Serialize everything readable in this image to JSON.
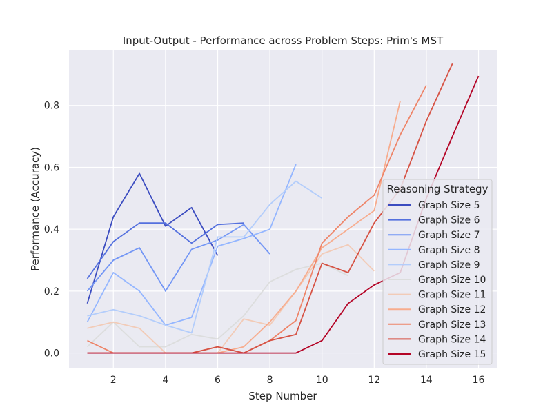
{
  "chart_data": {
    "type": "line",
    "title": "Input-Output - Performance across Problem Steps: Prim's MST",
    "xlabel": "Step Number",
    "ylabel": "Performance (Accuracy)",
    "xlim": [
      0.3,
      16.7
    ],
    "ylim": [
      -0.05,
      0.98
    ],
    "xticks": [
      2,
      4,
      6,
      8,
      10,
      12,
      14,
      16
    ],
    "yticks": [
      0.0,
      0.2,
      0.4,
      0.6,
      0.8
    ],
    "grid": true,
    "legend_title": "Reasoning Strategy",
    "legend_placement": "center-right",
    "series": [
      {
        "name": "Graph Size 5",
        "color": "#3b4cc0",
        "x": [
          1,
          2,
          3,
          4,
          5,
          6
        ],
        "y": [
          0.16,
          0.44,
          0.58,
          0.41,
          0.47,
          0.315
        ]
      },
      {
        "name": "Graph Size 6",
        "color": "#5470de",
        "x": [
          1,
          2,
          3,
          4,
          5,
          6,
          7
        ],
        "y": [
          0.24,
          0.36,
          0.42,
          0.42,
          0.355,
          0.415,
          0.42
        ]
      },
      {
        "name": "Graph Size 7",
        "color": "#7396f5",
        "x": [
          1,
          2,
          3,
          4,
          5,
          6,
          7,
          8
        ],
        "y": [
          0.2,
          0.3,
          0.34,
          0.2,
          0.335,
          0.365,
          0.415,
          0.32
        ]
      },
      {
        "name": "Graph Size 8",
        "color": "#94b6ff",
        "x": [
          1,
          2,
          3,
          4,
          5,
          6,
          7,
          8,
          9
        ],
        "y": [
          0.1,
          0.26,
          0.2,
          0.09,
          0.115,
          0.345,
          0.37,
          0.4,
          0.61
        ]
      },
      {
        "name": "Graph Size 9",
        "color": "#b3cdfb",
        "x": [
          1,
          2,
          3,
          4,
          5,
          6,
          7,
          8,
          9,
          10
        ],
        "y": [
          0.12,
          0.14,
          0.12,
          0.09,
          0.065,
          0.375,
          0.375,
          0.48,
          0.555,
          0.5
        ]
      },
      {
        "name": "Graph Size 10",
        "color": "#dcdddd",
        "x": [
          1,
          2,
          3,
          4,
          5,
          6,
          7,
          8,
          9,
          10,
          11
        ],
        "y": [
          0.02,
          0.1,
          0.02,
          0.02,
          0.06,
          0.045,
          0.12,
          0.23,
          0.27,
          0.29,
          0.25
        ]
      },
      {
        "name": "Graph Size 11",
        "color": "#f2cbb7",
        "x": [
          1,
          2,
          3,
          4,
          5,
          6,
          7,
          8,
          9,
          10,
          11,
          12
        ],
        "y": [
          0.08,
          0.1,
          0.08,
          0.0,
          0.0,
          0.0,
          0.11,
          0.09,
          0.2,
          0.32,
          0.35,
          0.265
        ]
      },
      {
        "name": "Graph Size 12",
        "color": "#f7ac8e",
        "x": [
          1,
          2,
          3,
          4,
          5,
          6,
          7,
          8,
          9,
          10,
          11,
          12,
          13
        ],
        "y": [
          0.0,
          0.0,
          0.0,
          0.0,
          0.0,
          0.0,
          0.02,
          0.1,
          0.2,
          0.34,
          0.4,
          0.46,
          0.815
        ]
      },
      {
        "name": "Graph Size 13",
        "color": "#ee8468",
        "x": [
          1,
          2,
          3,
          4,
          5,
          6,
          7,
          8,
          9,
          10,
          11,
          12,
          13,
          14
        ],
        "y": [
          0.04,
          0.0,
          0.0,
          0.0,
          0.0,
          0.02,
          0.0,
          0.04,
          0.105,
          0.355,
          0.44,
          0.51,
          0.705,
          0.865
        ]
      },
      {
        "name": "Graph Size 14",
        "color": "#d65244",
        "x": [
          1,
          2,
          3,
          4,
          5,
          6,
          7,
          8,
          9,
          10,
          11,
          12,
          13,
          14,
          15
        ],
        "y": [
          0.0,
          0.0,
          0.0,
          0.0,
          0.0,
          0.02,
          0.0,
          0.04,
          0.06,
          0.29,
          0.26,
          0.42,
          0.53,
          0.75,
          0.935
        ]
      },
      {
        "name": "Graph Size 15",
        "color": "#b40426",
        "x": [
          1,
          2,
          3,
          4,
          5,
          6,
          7,
          8,
          9,
          10,
          11,
          12,
          13,
          14,
          15,
          16
        ],
        "y": [
          0.0,
          0.0,
          0.0,
          0.0,
          0.0,
          0.0,
          0.0,
          0.0,
          0.0,
          0.04,
          0.16,
          0.22,
          0.26,
          0.5,
          0.7,
          0.895
        ]
      }
    ]
  }
}
